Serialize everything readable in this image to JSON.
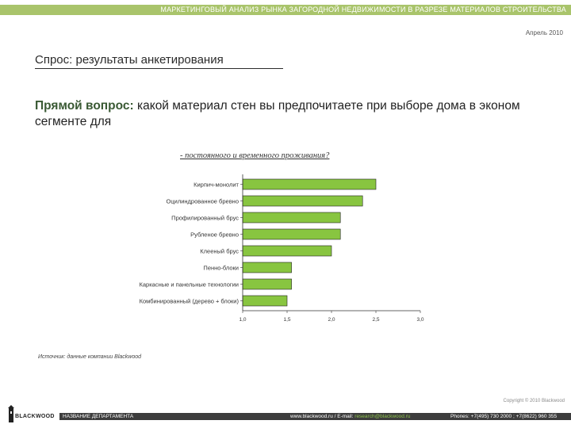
{
  "header": {
    "banner": "МАРКЕТИНГОВЫЙ АНАЛИЗ РЫНКА ЗАГОРОДНОЙ НЕДВИЖИМОСТИ В РАЗРЕЗЕ МАТЕРИАЛОВ СТРОИТЕЛЬСТВА",
    "date": "Апрель 2010"
  },
  "section_title": "Спрос: результаты анкетирования",
  "question": {
    "lead": "Прямой вопрос:",
    "text": " какой материал стен вы предпочитаете при выборе дома в эконом сегменте для"
  },
  "source": "Источник: данные компании Blackwood",
  "footer": {
    "copyright": "Copyright © 2010 Blackwood",
    "logo_text": "BLACKWOOD",
    "department": "НАЗВАНИЕ ДЕПАРТАМЕНТА",
    "web": "www.blackwood.ru  /  E-mail: ",
    "email": "research@blackwood.ru",
    "phones": "Phones: +7(495) 730 2000 ; +7(8622) 960 355"
  },
  "colors": {
    "banner": "#a9c46b",
    "bar": "#88c540",
    "bar_edge": "#222222",
    "footer": "#3d3d3d",
    "question_lead": "#3a5a34"
  },
  "chart_data": {
    "type": "bar",
    "orientation": "horizontal",
    "title": "- постоянного и временного проживания?",
    "categories": [
      "Кирпич-монолит",
      "Оцилиндрованное бревно",
      "Профилированный брус",
      "Рубленое бревно",
      "Клееный брус",
      "Пенно-блоки",
      "Каркасные и панельные технологии",
      "Комбинированный (дерево + блоки)"
    ],
    "values": [
      2.5,
      2.35,
      2.1,
      2.1,
      2.0,
      1.55,
      1.55,
      1.5
    ],
    "xlim": [
      1.0,
      3.0
    ],
    "xticks": [
      "1,0",
      "1,5",
      "2,0",
      "2,5",
      "3,0"
    ],
    "xtick_values": [
      1.0,
      1.5,
      2.0,
      2.5,
      3.0
    ],
    "grid": false,
    "legend": "none"
  }
}
